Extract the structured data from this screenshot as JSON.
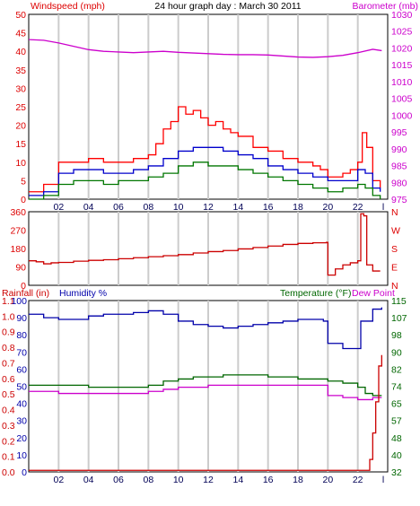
{
  "header": {
    "left_label": "Windspeed (mph)",
    "title": "24 hour graph day : March 30 2011",
    "right_label": "Barometer (mb)"
  },
  "colors": {
    "wind": "#dd0000",
    "barometer": "#cc00cc",
    "gust": "#ff0000",
    "avg": "#0000cc",
    "lull": "#007700",
    "direction": "#cc0000",
    "rain": "#cc0000",
    "humidity": "#0000aa",
    "temperature": "#006600",
    "dewpoint": "#cc00cc",
    "grid": "#cccccc"
  },
  "chart_data": [
    {
      "type": "line",
      "x_ticks": [
        "02",
        "04",
        "06",
        "08",
        "10",
        "12",
        "14",
        "16",
        "18",
        "20",
        "22",
        "l"
      ],
      "y_left": {
        "label": "Windspeed (mph)",
        "ticks": [
          "0",
          "5",
          "10",
          "15",
          "20",
          "25",
          "30",
          "35",
          "40",
          "45",
          "50"
        ],
        "ylim": [
          0,
          50
        ]
      },
      "y_right": {
        "label": "Barometer (mb)",
        "ticks": [
          "975",
          "980",
          "985",
          "990",
          "995",
          "1000",
          "1005",
          "1010",
          "1015",
          "1020",
          "1025",
          "1030"
        ],
        "ylim": [
          975,
          1030
        ]
      },
      "x_range": [
        0,
        24
      ],
      "grid": true,
      "series": [
        {
          "name": "",
          "axis": "right",
          "color_key": "barometer",
          "x": [
            0,
            1,
            2,
            3,
            4,
            5,
            6,
            7,
            8,
            9,
            10,
            11,
            12,
            13,
            14,
            15,
            16,
            17,
            18,
            19,
            20,
            21,
            22,
            23,
            23.6
          ],
          "y": [
            1022.5,
            1022.3,
            1021.5,
            1020.5,
            1019.5,
            1019,
            1018.8,
            1018.6,
            1018.8,
            1019,
            1018.7,
            1018.5,
            1018.3,
            1018.1,
            1018,
            1018,
            1017.9,
            1017.6,
            1017.3,
            1017.2,
            1017.4,
            1017.8,
            1018.6,
            1019.6,
            1019.2
          ]
        },
        {
          "name": "",
          "axis": "left",
          "color_key": "gust",
          "x": [
            0,
            1,
            2,
            3,
            4,
            5,
            6,
            7,
            8,
            8.5,
            9,
            9.5,
            10,
            10.5,
            11,
            11.5,
            12,
            12.5,
            13,
            13.5,
            14,
            15,
            16,
            17,
            18,
            19,
            19.5,
            20,
            21,
            21.5,
            22,
            22.3,
            22.6,
            23,
            23.5
          ],
          "y": [
            2,
            4,
            10,
            10,
            11,
            10,
            10,
            11,
            12,
            15,
            19,
            21,
            25,
            23,
            24,
            22,
            20,
            21,
            19,
            18,
            17,
            14,
            13,
            11,
            10,
            9,
            8,
            6,
            7,
            8,
            10,
            18,
            14,
            5,
            3
          ]
        },
        {
          "name": "",
          "axis": "left",
          "color_key": "avg",
          "x": [
            0,
            1,
            2,
            3,
            4,
            5,
            6,
            7,
            8,
            9,
            10,
            11,
            12,
            13,
            14,
            15,
            16,
            17,
            18,
            19,
            20,
            21,
            22,
            22.5,
            23,
            23.5
          ],
          "y": [
            1,
            2,
            7,
            8,
            8,
            7,
            7,
            8,
            9,
            11,
            13,
            14,
            14,
            13,
            12,
            11,
            9,
            8,
            7,
            6,
            5,
            5,
            8,
            7,
            3,
            2
          ]
        },
        {
          "name": "",
          "axis": "left",
          "color_key": "lull",
          "x": [
            0,
            1,
            2,
            3,
            4,
            5,
            6,
            7,
            8,
            9,
            10,
            11,
            12,
            13,
            14,
            15,
            16,
            17,
            18,
            19,
            20,
            21,
            22,
            22.5,
            23,
            23.5
          ],
          "y": [
            0,
            1,
            4,
            5,
            5,
            4,
            5,
            5,
            6,
            7,
            9,
            10,
            9,
            9,
            8,
            7,
            6,
            5,
            4,
            3,
            2,
            3,
            4,
            3,
            1,
            0
          ]
        }
      ]
    },
    {
      "type": "line",
      "y_left": {
        "ticks": [
          "0",
          "90",
          "180",
          "270",
          "360"
        ],
        "ylim": [
          0,
          360
        ]
      },
      "y_right": {
        "ticks": [
          "N",
          "W",
          "S",
          "E",
          "N"
        ]
      },
      "x_range": [
        0,
        24
      ],
      "grid": true,
      "series": [
        {
          "name": "",
          "color_key": "direction",
          "x": [
            0,
            0.5,
            1,
            1.5,
            2,
            3,
            4,
            5,
            6,
            7,
            8,
            9,
            10,
            11,
            12,
            13,
            14,
            15,
            16,
            17,
            18,
            19,
            19.9,
            20,
            20.5,
            21,
            21.5,
            22,
            22.2,
            22.4,
            22.6,
            23,
            23.5
          ],
          "y": [
            120,
            115,
            105,
            110,
            112,
            118,
            122,
            125,
            130,
            135,
            140,
            145,
            150,
            158,
            165,
            170,
            178,
            185,
            192,
            200,
            205,
            208,
            210,
            50,
            80,
            100,
            110,
            120,
            350,
            340,
            100,
            70,
            70
          ]
        }
      ]
    },
    {
      "type": "line",
      "x_ticks": [
        "02",
        "04",
        "06",
        "08",
        "10",
        "12",
        "14",
        "16",
        "18",
        "20",
        "22",
        "l"
      ],
      "y_rain": {
        "label": "Rainfall (in)",
        "ticks": [
          "0.0",
          "0.1",
          "0.2",
          "0.3",
          "0.4",
          "0.5",
          "0.6",
          "0.7",
          "0.8",
          "0.9",
          "1.0",
          "1.1"
        ],
        "ylim": [
          0,
          1.1
        ]
      },
      "y_humidity": {
        "label": "Humidity %",
        "ticks": [
          "0",
          "10",
          "20",
          "30",
          "40",
          "50",
          "60",
          "70",
          "80",
          "90",
          "100"
        ],
        "ylim": [
          0,
          100
        ]
      },
      "y_right": {
        "label": "Temperature (°F)",
        "label2": "Dew Point",
        "ticks": [
          "32",
          "40",
          "48",
          "57",
          "65",
          "74",
          "82",
          "90",
          "98",
          "107",
          "115"
        ],
        "ylim": [
          32,
          115
        ]
      },
      "x_range": [
        0,
        24
      ],
      "grid": true,
      "series": [
        {
          "name": "",
          "axis": "humidity",
          "color_key": "humidity",
          "x": [
            0,
            1,
            2,
            3,
            4,
            5,
            6,
            7,
            8,
            9,
            10,
            11,
            12,
            13,
            14,
            15,
            16,
            17,
            18,
            19,
            19.7,
            20,
            21,
            21.8,
            22.2,
            23,
            23.6
          ],
          "y": [
            92,
            90,
            89,
            89,
            91,
            92,
            92,
            93,
            94,
            92,
            88,
            86,
            85,
            84,
            85,
            86,
            87,
            88,
            89,
            89,
            88,
            75,
            72,
            72,
            88,
            95,
            96
          ]
        },
        {
          "name": "",
          "axis": "temperature",
          "color_key": "temperature",
          "x": [
            0,
            2,
            4,
            6,
            7,
            8,
            9,
            10,
            11,
            12,
            13,
            14,
            15,
            16,
            17,
            18,
            19,
            20,
            21,
            22,
            22.5,
            23,
            23.6
          ],
          "y": [
            74,
            74,
            73,
            73,
            73,
            74,
            76,
            77,
            78,
            78,
            79,
            79,
            79,
            78,
            78,
            77,
            77,
            76,
            75,
            73,
            70,
            69,
            69
          ]
        },
        {
          "name": "",
          "axis": "temperature",
          "color_key": "dewpoint",
          "x": [
            0,
            2,
            4,
            6,
            7,
            8,
            9,
            10,
            11,
            12,
            13,
            14,
            15,
            16,
            17,
            18,
            19,
            19.8,
            20,
            21,
            22,
            23,
            23.6
          ],
          "y": [
            71,
            70,
            70,
            70,
            70,
            71,
            72,
            73,
            73,
            74,
            74,
            74,
            74,
            74,
            74,
            74,
            74,
            74,
            69,
            68,
            67,
            68,
            68
          ]
        },
        {
          "name": "",
          "axis": "rain",
          "color_key": "rain",
          "x": [
            0,
            22.5,
            22.8,
            23.0,
            23.2,
            23.4,
            23.6
          ],
          "y": [
            0.01,
            0.01,
            0.08,
            0.25,
            0.45,
            0.68,
            0.75
          ]
        }
      ]
    }
  ],
  "middle_panel": {
    "right_letters": [
      "N",
      "W",
      "S",
      "E",
      "N"
    ]
  },
  "bottom_header": {
    "rain_label": "Rainfall (in)",
    "humidity_label": "Humidity %",
    "temp_label": "Temperature (°F)",
    "dew_label": "Dew Point"
  }
}
